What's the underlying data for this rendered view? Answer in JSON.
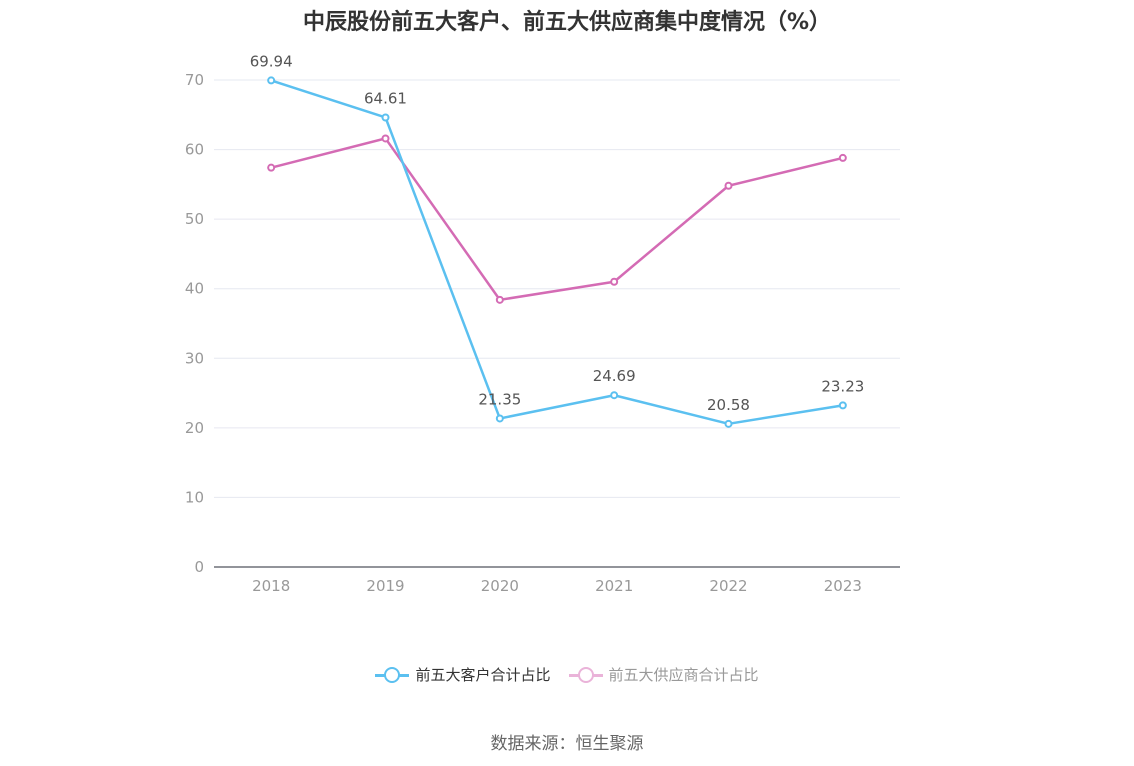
{
  "chart_data": {
    "type": "line",
    "title": "中辰股份前五大客户、前五大供应商集中度情况（%）",
    "categories": [
      "2018",
      "2019",
      "2020",
      "2021",
      "2022",
      "2023"
    ],
    "ylim": [
      0,
      70
    ],
    "yticks": [
      0,
      10,
      20,
      30,
      40,
      50,
      60,
      70
    ],
    "grid": true,
    "legend_position": "bottom",
    "series": [
      {
        "name": "前五大客户合计占比",
        "color": "#5bc0f0",
        "values": [
          69.94,
          64.61,
          21.35,
          24.69,
          20.58,
          23.23
        ],
        "labels_shown": true
      },
      {
        "name": "前五大供应商合计占比",
        "color": "#d46bb4",
        "legend_color": "#eab3d9",
        "values": [
          57.4,
          61.6,
          38.4,
          41.0,
          54.8,
          58.8
        ],
        "labels_shown": false
      }
    ]
  },
  "source": "数据来源：恒生聚源"
}
